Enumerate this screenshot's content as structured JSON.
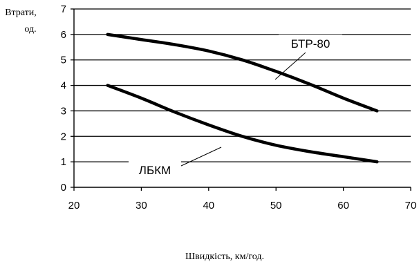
{
  "chart_data": {
    "type": "line",
    "ylabel_line1": "Втрати,",
    "ylabel_line2": "од.",
    "xlabel": "Швидкість, км/год.",
    "xlim": [
      20,
      70
    ],
    "ylim": [
      0,
      7
    ],
    "xticks": [
      20,
      30,
      40,
      50,
      60,
      70
    ],
    "yticks": [
      0,
      1,
      2,
      3,
      4,
      5,
      6,
      7
    ],
    "grid": "horizontal",
    "legend": "none",
    "series": [
      {
        "name": "БТР-80",
        "color": "#000000",
        "points": [
          [
            25,
            6.0
          ],
          [
            30,
            5.8
          ],
          [
            35,
            5.6
          ],
          [
            40,
            5.35
          ],
          [
            45,
            5.0
          ],
          [
            50,
            4.55
          ],
          [
            55,
            4.05
          ],
          [
            60,
            3.5
          ],
          [
            65,
            3.0
          ]
        ]
      },
      {
        "name": "ЛБКМ",
        "color": "#000000",
        "points": [
          [
            25,
            4.0
          ],
          [
            30,
            3.5
          ],
          [
            35,
            2.95
          ],
          [
            40,
            2.45
          ],
          [
            45,
            2.0
          ],
          [
            50,
            1.65
          ],
          [
            55,
            1.4
          ],
          [
            60,
            1.2
          ],
          [
            65,
            1.0
          ]
        ]
      }
    ]
  }
}
